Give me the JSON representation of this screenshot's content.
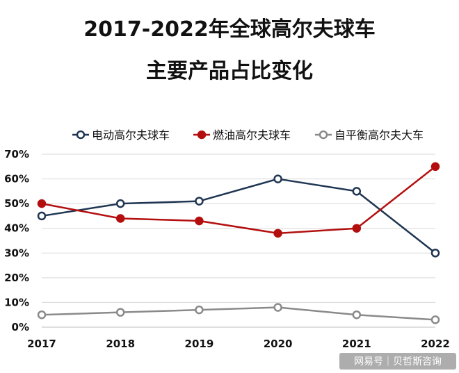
{
  "chart_data": {
    "type": "line",
    "title": "2017-2022年全球高尔夫球车",
    "subtitle": "主要产品占比变化",
    "xlabel": "",
    "ylabel": "",
    "x": [
      "2017",
      "2018",
      "2019",
      "2020",
      "2021",
      "2022"
    ],
    "y_ticks": [
      "0%",
      "10%",
      "20%",
      "30%",
      "40%",
      "50%",
      "60%",
      "70%"
    ],
    "ylim": [
      0,
      70
    ],
    "grid": true,
    "legend_position": "top",
    "series": [
      {
        "name": "电动高尔夫球车",
        "color": "#1f3552",
        "values": [
          45,
          50,
          51,
          60,
          55,
          30
        ]
      },
      {
        "name": "燃油高尔夫球车",
        "color": "#b30f0f",
        "values": [
          50,
          44,
          43,
          38,
          40,
          65
        ]
      },
      {
        "name": "自平衡高尔夫大车",
        "color": "#8a8a8a",
        "values": [
          5,
          6,
          7,
          8,
          5,
          3
        ]
      }
    ]
  },
  "watermark": "网易号｜贝哲斯咨询"
}
